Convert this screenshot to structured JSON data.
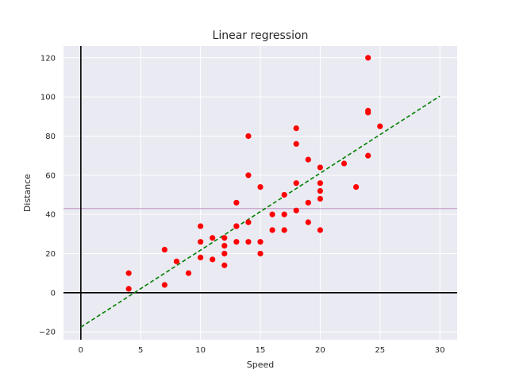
{
  "chart_data": {
    "type": "scatter",
    "title": "Linear regression",
    "xlabel": "Speed",
    "ylabel": "Distance",
    "xlim": [
      -1.45,
      31.45
    ],
    "ylim": [
      -24,
      126
    ],
    "xticks": [
      0,
      5,
      10,
      15,
      20,
      25,
      30
    ],
    "yticks": [
      -20,
      0,
      20,
      40,
      60,
      80,
      100,
      120
    ],
    "grid": true,
    "background": "#eaeaf2",
    "grid_color": "#ffffff",
    "points_color": "#ff0000",
    "regression_color": "#008000",
    "hline_color": "#c8a2c8",
    "axis_line_color": "#000000",
    "reference_lines": {
      "hline_y": 42.98,
      "zero_x": 0,
      "zero_y": 0
    },
    "regression_line": {
      "x": [
        0,
        30
      ],
      "y": [
        -17.58,
        100.4
      ]
    },
    "points": [
      [
        4,
        2
      ],
      [
        4,
        10
      ],
      [
        7,
        4
      ],
      [
        7,
        22
      ],
      [
        8,
        16
      ],
      [
        9,
        10
      ],
      [
        10,
        18
      ],
      [
        10,
        26
      ],
      [
        10,
        34
      ],
      [
        11,
        17
      ],
      [
        11,
        28
      ],
      [
        12,
        14
      ],
      [
        12,
        20
      ],
      [
        12,
        24
      ],
      [
        12,
        28
      ],
      [
        13,
        26
      ],
      [
        13,
        34
      ],
      [
        13,
        34
      ],
      [
        13,
        46
      ],
      [
        14,
        26
      ],
      [
        14,
        36
      ],
      [
        14,
        60
      ],
      [
        14,
        80
      ],
      [
        15,
        20
      ],
      [
        15,
        26
      ],
      [
        15,
        54
      ],
      [
        16,
        32
      ],
      [
        16,
        40
      ],
      [
        17,
        32
      ],
      [
        17,
        40
      ],
      [
        17,
        50
      ],
      [
        18,
        42
      ],
      [
        18,
        56
      ],
      [
        18,
        76
      ],
      [
        18,
        84
      ],
      [
        19,
        36
      ],
      [
        19,
        46
      ],
      [
        19,
        68
      ],
      [
        20,
        32
      ],
      [
        20,
        48
      ],
      [
        20,
        52
      ],
      [
        20,
        56
      ],
      [
        20,
        64
      ],
      [
        22,
        66
      ],
      [
        23,
        54
      ],
      [
        24,
        70
      ],
      [
        24,
        92
      ],
      [
        24,
        93
      ],
      [
        24,
        120
      ],
      [
        25,
        85
      ]
    ]
  }
}
